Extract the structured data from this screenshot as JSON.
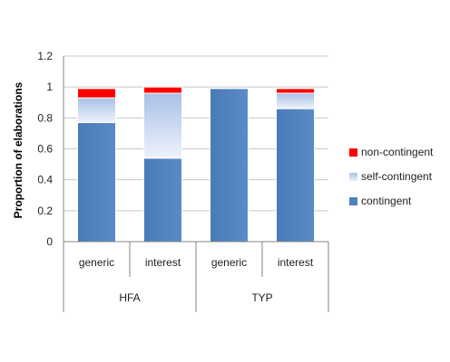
{
  "chart_data": {
    "type": "bar",
    "stacked": true,
    "title": "",
    "ylabel": "Proportion of elaborations",
    "ylim": [
      0,
      1.2
    ],
    "yticks": [
      "0",
      "0.2",
      "0.4",
      "0.6",
      "0.8",
      "1",
      "1.2"
    ],
    "categories": [
      "generic",
      "interest",
      "generic",
      "interest"
    ],
    "groups": [
      {
        "label": "HFA",
        "categories": [
          "generic",
          "interest"
        ]
      },
      {
        "label": "TYP",
        "categories": [
          "generic",
          "interest"
        ]
      }
    ],
    "series": [
      {
        "name": "contingent",
        "color": "#4f81bd",
        "values": [
          0.77,
          0.54,
          0.99,
          0.86
        ]
      },
      {
        "name": "self-contingent",
        "color": "#b9cdeb",
        "values": [
          0.16,
          0.42,
          0.0,
          0.1
        ]
      },
      {
        "name": "non-contingent",
        "color": "#ff0000",
        "values": [
          0.06,
          0.04,
          0.0,
          0.03
        ]
      }
    ],
    "legend": {
      "placement": "right",
      "order": [
        "non-contingent",
        "self-contingent",
        "contingent"
      ]
    },
    "grid": true
  }
}
